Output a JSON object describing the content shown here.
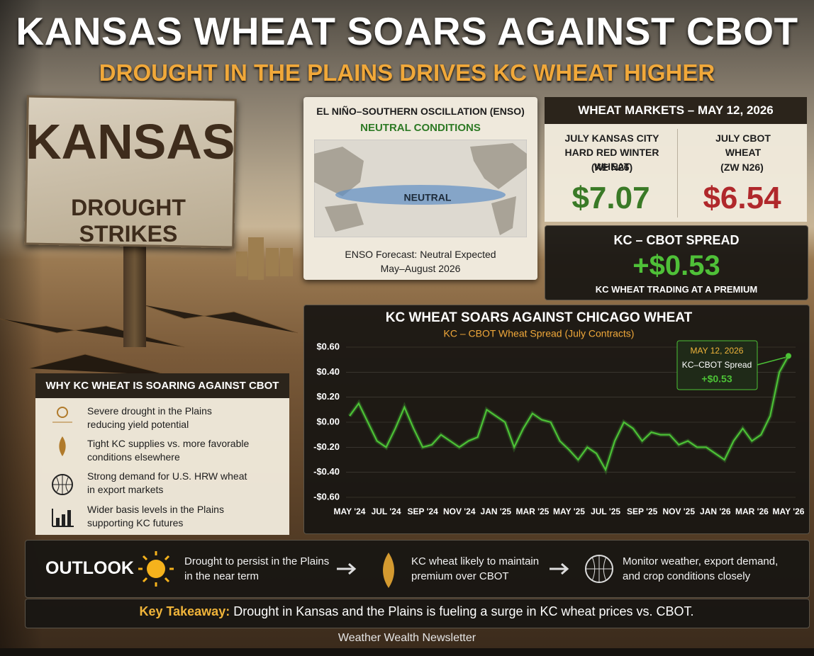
{
  "header": {
    "title": "KANSAS WHEAT SOARS AGAINST CBOT",
    "subtitle": "DROUGHT IN THE PLAINS DRIVES KC WHEAT HIGHER"
  },
  "sign": {
    "line1": "KANSAS",
    "line2": "DROUGHT STRIKES"
  },
  "enso": {
    "title": "EL NIÑO–SOUTHERN OSCILLATION (ENSO)",
    "status": "NEUTRAL CONDITIONS",
    "map_label": "NEUTRAL",
    "forecast": "ENSO Forecast: Neutral Expected",
    "period": "May–August 2026"
  },
  "markets": {
    "title": "WHEAT MARKETS – MAY 12, 2026",
    "items": [
      {
        "name": "JULY KANSAS CITY HARD RED WINTER WHEAT",
        "code": "(KE N26)",
        "price": "$7.07"
      },
      {
        "name": "JULY CBOT WHEAT",
        "code": "(ZW N26)",
        "price": "$6.54"
      }
    ]
  },
  "spread": {
    "title": "KC – CBOT SPREAD",
    "value": "+$0.53",
    "note": "KC WHEAT TRADING AT A PREMIUM"
  },
  "chart_data": {
    "type": "line",
    "title": "KC WHEAT SOARS AGAINST CHICAGO WHEAT",
    "subtitle": "KC – CBOT Wheat Spread (July Contracts)",
    "categories": [
      "MAY '24",
      null,
      null,
      null,
      "JUL '24",
      null,
      null,
      null,
      "SEP '24",
      null,
      null,
      null,
      "NOV '24",
      null,
      null,
      null,
      "JAN '25",
      null,
      null,
      null,
      "MAR '25",
      null,
      null,
      null,
      "MAY '25",
      null,
      null,
      null,
      "JUL '25",
      null,
      null,
      null,
      "SEP '25",
      null,
      null,
      null,
      "NOV '25",
      null,
      null,
      null,
      "JAN '26",
      null,
      null,
      null,
      "MAR '26",
      null,
      null,
      null,
      "MAY '26"
    ],
    "values": [
      0.05,
      0.15,
      0.0,
      -0.15,
      -0.2,
      -0.05,
      0.12,
      -0.05,
      -0.2,
      -0.18,
      -0.1,
      -0.15,
      -0.2,
      -0.15,
      -0.12,
      0.1,
      0.05,
      0.0,
      -0.2,
      -0.05,
      0.07,
      0.02,
      0.0,
      -0.15,
      -0.22,
      -0.3,
      -0.2,
      -0.25,
      -0.38,
      -0.15,
      0.0,
      -0.05,
      -0.15,
      -0.08,
      -0.1,
      -0.1,
      -0.18,
      -0.15,
      -0.2,
      -0.2,
      -0.25,
      -0.3,
      -0.15,
      -0.05,
      -0.15,
      -0.1,
      0.05,
      0.4,
      0.53
    ],
    "color": "#4cc236",
    "ylim": [
      -0.6,
      0.6
    ],
    "yticks": [
      {
        "value": -0.6,
        "label": "-$0.60"
      },
      {
        "value": -0.4,
        "label": "-$0.40"
      },
      {
        "value": -0.2,
        "label": "-$0.20"
      },
      {
        "value": 0,
        "label": "$0.00"
      },
      {
        "value": 0.2,
        "label": "$0.20"
      },
      {
        "value": 0.4,
        "label": "$0.40"
      },
      {
        "value": 0.6,
        "label": "$0.60"
      }
    ],
    "annotation": {
      "date": "MAY 12, 2026",
      "label": "KC–CBOT Spread",
      "value": "+$0.53"
    }
  },
  "reasons": {
    "title": "WHY KC WHEAT IS SOARING AGAINST CBOT",
    "items": [
      "Severe drought in the Plains reducing yield potential",
      "Tight KC supplies vs. more favorable conditions elsewhere",
      "Strong demand for U.S. HRW wheat in export markets",
      "Wider basis levels in the Plains supporting KC futures"
    ]
  },
  "outlook": {
    "label": "OUTLOOK",
    "items": [
      "Drought to persist in the Plains in the near term",
      "KC wheat likely to maintain premium over CBOT",
      "Monitor weather, export demand, and crop conditions closely"
    ]
  },
  "takeaway": {
    "label": "Key Takeaway:",
    "text": "Drought in Kansas and the Plains is fueling a surge in KC wheat prices vs. CBOT."
  },
  "footer": "Weather Wealth Newsletter"
}
